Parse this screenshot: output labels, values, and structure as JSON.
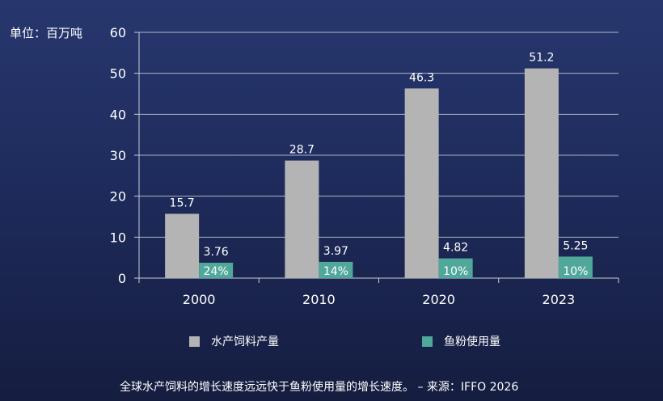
{
  "unit_label": "单位：百万吨",
  "caption": "全球水产饲料的增长速度远远快于鱼粉使用量的增长速度。 – 来源：IFFO 2026",
  "colors": {
    "feed": "#b4b4b4",
    "fishmeal": "#4fa89a",
    "axis": "#c8ccd8",
    "grid": "#c8ccd8"
  },
  "chart_data": {
    "type": "bar",
    "categories": [
      "2000",
      "2010",
      "2020",
      "2023"
    ],
    "series": [
      {
        "name": "水产饲料产量",
        "values": [
          15.7,
          28.7,
          46.3,
          51.2
        ],
        "labels": [
          "15.7",
          "28.7",
          "46.3",
          "51.2"
        ]
      },
      {
        "name": "鱼粉使用量",
        "values": [
          3.76,
          3.97,
          4.82,
          5.25
        ],
        "labels": [
          "3.76",
          "3.97",
          "4.82",
          "5.25"
        ],
        "inner_labels": [
          "24%",
          "14%",
          "10%",
          "10%"
        ]
      }
    ],
    "ylim": [
      0,
      60
    ],
    "yticks": [
      0,
      10,
      20,
      30,
      40,
      50,
      60
    ],
    "grid": true,
    "legend_position": "bottom"
  }
}
